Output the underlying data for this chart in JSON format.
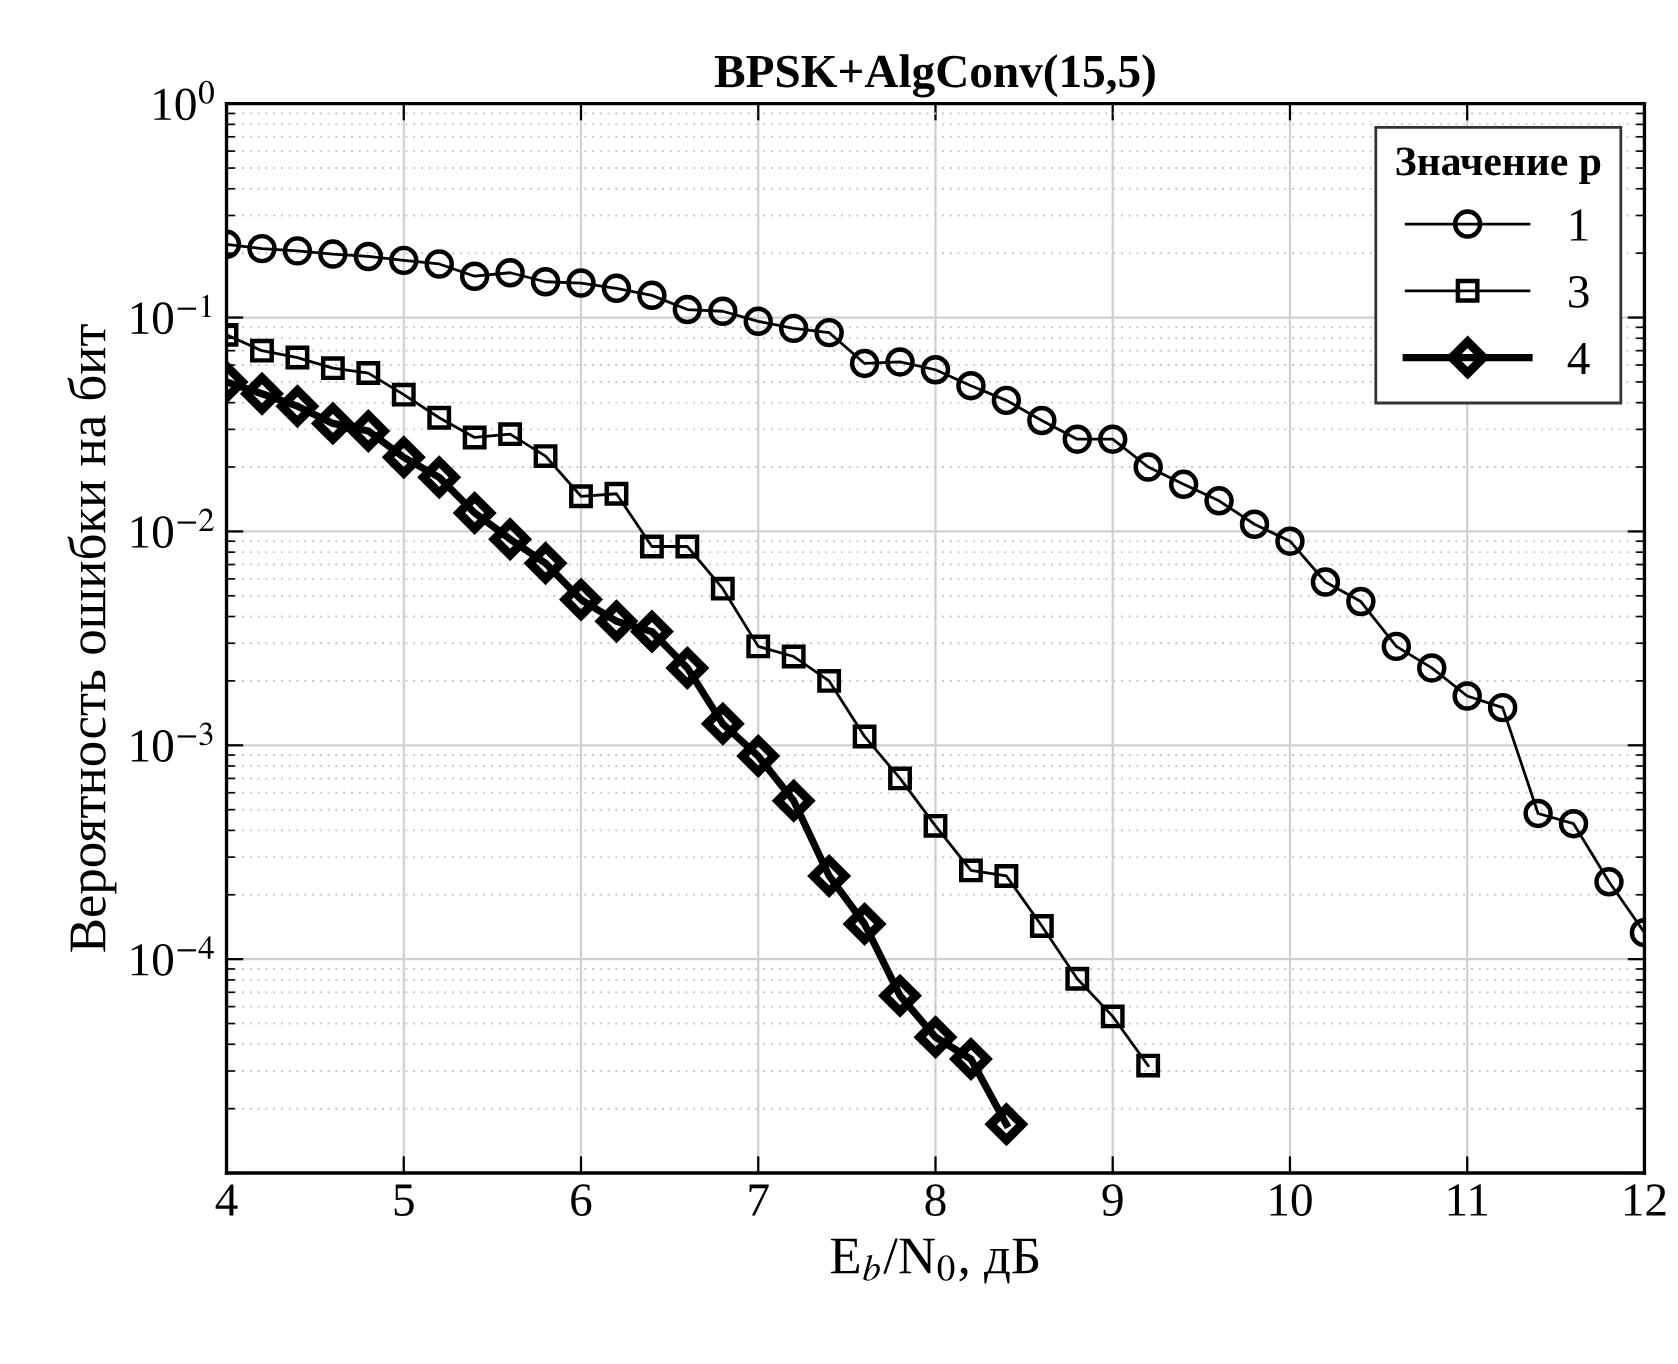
{
  "chart_data": {
    "type": "line",
    "title": "BPSK+AlgConv(15,5)",
    "xlabel": "E$_{b}$/N$_{0}$, дБ",
    "ylabel": "Вероятность ошибки на бит",
    "legend_title": "Значение p",
    "legend": "top right",
    "grid": true,
    "log": "y",
    "line_style": "solid",
    "x": [
      4.0,
      4.2,
      4.4,
      4.6,
      4.8,
      5.0,
      5.2,
      5.4,
      5.6,
      5.8,
      6.0,
      6.2,
      6.4,
      6.6,
      6.8,
      7.0,
      7.2,
      7.4,
      7.6,
      7.8,
      8.0,
      8.2,
      8.4,
      8.6,
      8.8,
      9.0,
      9.2,
      9.4,
      9.6,
      9.8,
      10.0,
      10.2,
      10.4,
      10.6,
      10.8,
      11.0,
      11.2,
      11.4,
      11.6,
      11.8,
      12.0
    ],
    "xlim": [
      4,
      12
    ],
    "xticks": [
      4,
      5,
      6,
      7,
      8,
      9,
      10,
      11,
      12
    ],
    "ylim": [
      1e-05,
      1
    ],
    "yticks": [
      {
        "value": 1e-05,
        "label": null
      },
      {
        "value": 0.0001,
        "label": "10$^{−4}$"
      },
      {
        "value": 0.001,
        "label": "10$^{−3}$"
      },
      {
        "value": 0.01,
        "label": "10$^{−2}$"
      },
      {
        "value": 0.1,
        "label": "10$^{−1}$"
      },
      {
        "value": 1,
        "label": "10$^{0}$"
      }
    ],
    "series": [
      {
        "name": "1",
        "color": "#000000",
        "marker": "circle",
        "values": [
          0.22,
          0.21,
          0.205,
          0.198,
          0.193,
          0.185,
          0.178,
          0.156,
          0.162,
          0.147,
          0.145,
          0.137,
          0.127,
          0.109,
          0.107,
          0.096,
          0.089,
          0.085,
          0.061,
          0.062,
          0.057,
          0.048,
          0.041,
          0.033,
          0.027,
          0.027,
          0.02,
          0.0166,
          0.0139,
          0.0108,
          0.009,
          0.0058,
          0.0047,
          0.0029,
          0.0023,
          0.0017,
          0.0015,
          0.00048,
          0.00043,
          0.00023,
          0.000133
        ]
      },
      {
        "name": "3",
        "color": "#000000",
        "marker": "square",
        "values": [
          0.083,
          0.07,
          0.065,
          0.058,
          0.055,
          0.0436,
          0.034,
          0.0275,
          0.0285,
          0.0225,
          0.0146,
          0.015,
          0.0085,
          0.0085,
          0.0054,
          0.0029,
          0.0026,
          0.002,
          0.0011,
          0.0007,
          0.00042,
          0.00026,
          0.000245,
          0.000143,
          8.1e-05,
          5.4e-05,
          3.18e-05,
          null,
          null,
          null,
          null,
          null,
          null,
          null,
          null,
          null,
          null,
          null,
          null,
          null,
          null
        ]
      },
      {
        "name": "4",
        "color": "#000000",
        "marker": "diamond",
        "values": [
          0.05,
          0.044,
          0.0385,
          0.032,
          0.0295,
          0.0222,
          0.0179,
          0.0122,
          0.0092,
          0.0071,
          0.0048,
          0.0038,
          0.0034,
          0.0023,
          0.00126,
          0.00089,
          0.00055,
          0.000245,
          0.000146,
          6.75e-05,
          4.32e-05,
          3.41e-05,
          1.69e-05,
          null,
          null,
          null,
          null,
          null,
          null,
          null,
          null,
          null,
          null,
          null,
          null,
          null,
          null,
          null,
          null,
          null,
          null
        ]
      }
    ]
  }
}
